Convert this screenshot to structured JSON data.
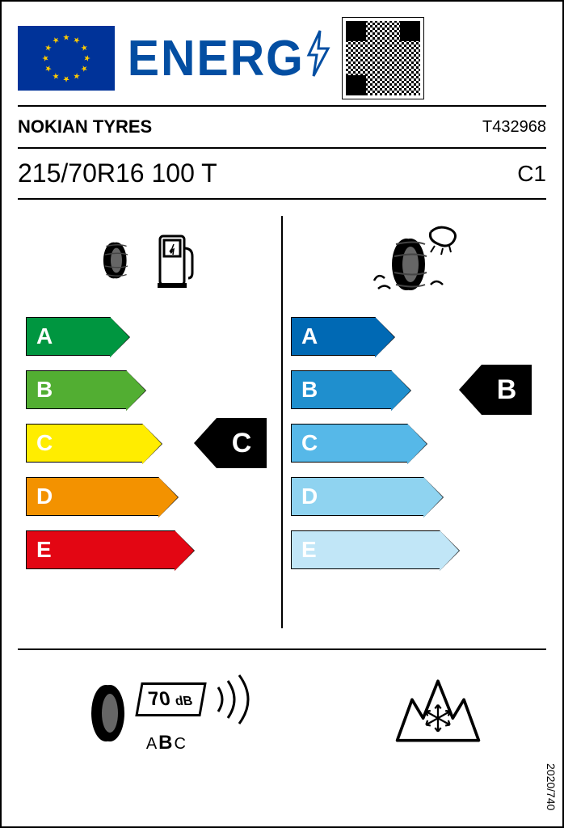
{
  "header": {
    "title": "ENERG"
  },
  "brand": "NOKIAN TYRES",
  "article": "T432968",
  "size": "215/70R16 100 T",
  "tyre_class": "C1",
  "fuel": {
    "classes": [
      "A",
      "B",
      "C",
      "D",
      "E"
    ],
    "colors": [
      "#009640",
      "#52ae32",
      "#ffed00",
      "#f39200",
      "#e30613"
    ],
    "widths": [
      105,
      125,
      145,
      165,
      185
    ],
    "rating": "C",
    "rating_index": 2
  },
  "wet": {
    "classes": [
      "A",
      "B",
      "C",
      "D",
      "E"
    ],
    "colors": [
      "#0069b4",
      "#1f8fce",
      "#56b8e8",
      "#8fd3f0",
      "#c1e6f7"
    ],
    "widths": [
      105,
      125,
      145,
      165,
      185
    ],
    "rating": "B",
    "rating_index": 1
  },
  "noise": {
    "db": "70",
    "unit": "dB",
    "scale": [
      "A",
      "B",
      "C"
    ],
    "active": "B"
  },
  "regulation": "2020/740",
  "style": {
    "border": "#000",
    "text": "#000",
    "energy_blue": "#034ea2",
    "eu_blue": "#003399",
    "eu_gold": "#ffcc00"
  }
}
